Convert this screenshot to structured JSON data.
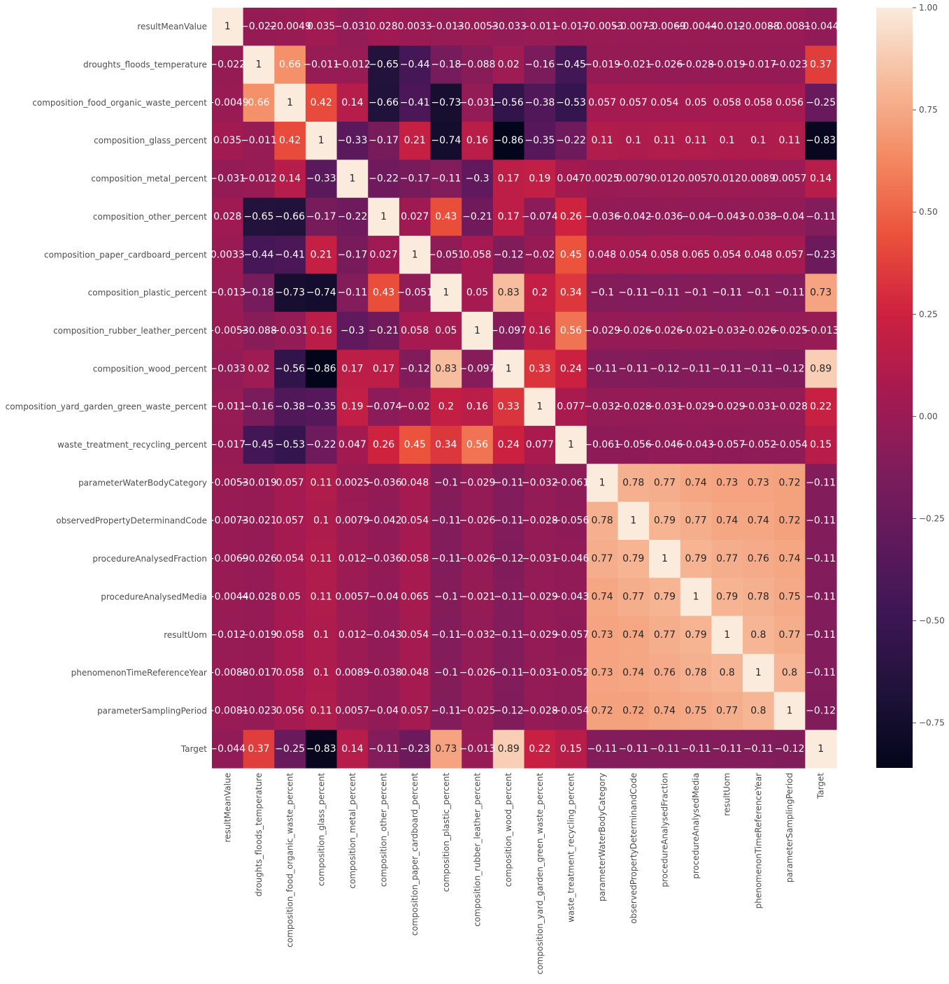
{
  "chart_data": {
    "type": "heatmap",
    "title": "",
    "xlabel": "",
    "ylabel": "",
    "labels": [
      "resultMeanValue",
      "droughts_floods_temperature",
      "composition_food_organic_waste_percent",
      "composition_glass_percent",
      "composition_metal_percent",
      "composition_other_percent",
      "composition_paper_cardboard_percent",
      "composition_plastic_percent",
      "composition_rubber_leather_percent",
      "composition_wood_percent",
      "composition_yard_garden_green_waste_percent",
      "waste_treatment_recycling_percent",
      "parameterWaterBodyCategory",
      "observedPropertyDeterminandCode",
      "procedureAnalysedFraction",
      "procedureAnalysedMedia",
      "resultUom",
      "phenomenonTimeReferenceYear",
      "parameterSamplingPeriod",
      "Target"
    ],
    "matrix": [
      [
        1,
        -0.022,
        -0.0049,
        0.035,
        -0.031,
        0.028,
        0.0033,
        -0.013,
        -0.0053,
        -0.033,
        -0.011,
        -0.017,
        -0.0053,
        -0.0073,
        -0.0069,
        -0.0044,
        -0.012,
        -0.0088,
        -0.0081,
        -0.044
      ],
      [
        -0.022,
        1,
        0.66,
        -0.011,
        -0.012,
        -0.65,
        -0.44,
        -0.18,
        -0.088,
        0.02,
        -0.16,
        -0.45,
        -0.019,
        -0.021,
        -0.026,
        -0.028,
        -0.019,
        -0.017,
        -0.023,
        0.37
      ],
      [
        -0.0049,
        0.66,
        1,
        0.42,
        0.14,
        -0.66,
        -0.41,
        -0.73,
        -0.031,
        -0.56,
        -0.38,
        -0.53,
        0.057,
        0.057,
        0.054,
        0.05,
        0.058,
        0.058,
        0.056,
        -0.25
      ],
      [
        0.035,
        -0.011,
        0.42,
        1,
        -0.33,
        -0.17,
        0.21,
        -0.74,
        0.16,
        -0.86,
        -0.35,
        -0.22,
        0.11,
        0.1,
        0.11,
        0.11,
        0.1,
        0.1,
        0.11,
        -0.83
      ],
      [
        -0.031,
        -0.012,
        0.14,
        -0.33,
        1,
        -0.22,
        -0.17,
        -0.11,
        -0.3,
        0.17,
        0.19,
        0.047,
        0.0025,
        0.0079,
        0.012,
        0.0057,
        0.012,
        0.0089,
        0.0057,
        0.14
      ],
      [
        0.028,
        -0.65,
        -0.66,
        -0.17,
        -0.22,
        1,
        0.027,
        0.43,
        -0.21,
        0.17,
        -0.074,
        0.26,
        -0.036,
        -0.042,
        -0.036,
        -0.04,
        -0.043,
        -0.038,
        -0.04,
        -0.11
      ],
      [
        0.0033,
        -0.44,
        -0.41,
        0.21,
        -0.17,
        0.027,
        1,
        -0.051,
        0.058,
        -0.12,
        -0.02,
        0.45,
        0.048,
        0.054,
        0.058,
        0.065,
        0.054,
        0.048,
        0.057,
        -0.23
      ],
      [
        -0.013,
        -0.18,
        -0.73,
        -0.74,
        -0.11,
        0.43,
        -0.051,
        1,
        0.05,
        0.83,
        0.2,
        0.34,
        -0.1,
        -0.11,
        -0.11,
        -0.1,
        -0.11,
        -0.1,
        -0.11,
        0.73
      ],
      [
        -0.0053,
        -0.088,
        -0.031,
        0.16,
        -0.3,
        -0.21,
        0.058,
        0.05,
        1,
        -0.097,
        0.16,
        0.56,
        -0.029,
        -0.026,
        -0.026,
        -0.021,
        -0.032,
        -0.026,
        -0.025,
        -0.013
      ],
      [
        -0.033,
        0.02,
        -0.56,
        -0.86,
        0.17,
        0.17,
        -0.12,
        0.83,
        -0.097,
        1,
        0.33,
        0.24,
        -0.11,
        -0.11,
        -0.12,
        -0.11,
        -0.11,
        -0.11,
        -0.12,
        0.89
      ],
      [
        -0.011,
        -0.16,
        -0.38,
        -0.35,
        0.19,
        -0.074,
        -0.02,
        0.2,
        0.16,
        0.33,
        1,
        0.077,
        -0.032,
        -0.028,
        -0.031,
        -0.029,
        -0.029,
        -0.031,
        -0.028,
        0.22
      ],
      [
        -0.017,
        -0.45,
        -0.53,
        -0.22,
        0.047,
        0.26,
        0.45,
        0.34,
        0.56,
        0.24,
        0.077,
        1,
        -0.061,
        -0.056,
        -0.046,
        -0.043,
        -0.057,
        -0.052,
        -0.054,
        0.15
      ],
      [
        -0.0053,
        -0.019,
        0.057,
        0.11,
        0.0025,
        -0.036,
        0.048,
        -0.1,
        -0.029,
        -0.11,
        -0.032,
        -0.061,
        1,
        0.78,
        0.77,
        0.74,
        0.73,
        0.73,
        0.72,
        -0.11
      ],
      [
        -0.0073,
        -0.021,
        0.057,
        0.1,
        0.0079,
        -0.042,
        0.054,
        -0.11,
        -0.026,
        -0.11,
        -0.028,
        -0.056,
        0.78,
        1,
        0.79,
        0.77,
        0.74,
        0.74,
        0.72,
        -0.11
      ],
      [
        -0.0069,
        -0.026,
        0.054,
        0.11,
        0.012,
        -0.036,
        0.058,
        -0.11,
        -0.026,
        -0.12,
        -0.031,
        -0.046,
        0.77,
        0.79,
        1,
        0.79,
        0.77,
        0.76,
        0.74,
        -0.11
      ],
      [
        -0.0044,
        -0.028,
        0.05,
        0.11,
        0.0057,
        -0.04,
        0.065,
        -0.1,
        -0.021,
        -0.11,
        -0.029,
        -0.043,
        0.74,
        0.77,
        0.79,
        1,
        0.79,
        0.78,
        0.75,
        -0.11
      ],
      [
        -0.012,
        -0.019,
        0.058,
        0.1,
        0.012,
        -0.043,
        0.054,
        -0.11,
        -0.032,
        -0.11,
        -0.029,
        -0.057,
        0.73,
        0.74,
        0.77,
        0.79,
        1,
        0.8,
        0.77,
        -0.11
      ],
      [
        -0.0088,
        -0.017,
        0.058,
        0.1,
        0.0089,
        -0.038,
        0.048,
        -0.1,
        -0.026,
        -0.11,
        -0.031,
        -0.052,
        0.73,
        0.74,
        0.76,
        0.78,
        0.8,
        1,
        0.8,
        -0.11
      ],
      [
        -0.0081,
        -0.023,
        0.056,
        0.11,
        0.0057,
        -0.04,
        0.057,
        -0.11,
        -0.025,
        -0.12,
        -0.028,
        -0.054,
        0.72,
        0.72,
        0.74,
        0.75,
        0.77,
        0.8,
        1,
        -0.12
      ],
      [
        -0.044,
        0.37,
        -0.25,
        -0.83,
        0.14,
        -0.11,
        -0.23,
        0.73,
        -0.013,
        0.89,
        0.22,
        0.15,
        -0.11,
        -0.11,
        -0.11,
        -0.11,
        -0.11,
        -0.11,
        -0.12,
        1
      ]
    ],
    "colorbar": {
      "colormap": "rocket",
      "vmin": -0.86,
      "vmax": 1.0,
      "ticks": [
        -0.75,
        -0.5,
        -0.25,
        0.0,
        0.25,
        0.5,
        0.75,
        1.0
      ],
      "tick_labels": [
        "−0.75",
        "−0.50",
        "−0.25",
        "0.00",
        "0.25",
        "0.50",
        "0.75",
        "1.00"
      ]
    },
    "annotations": true,
    "grid": false,
    "legend": "colorbar-right"
  }
}
